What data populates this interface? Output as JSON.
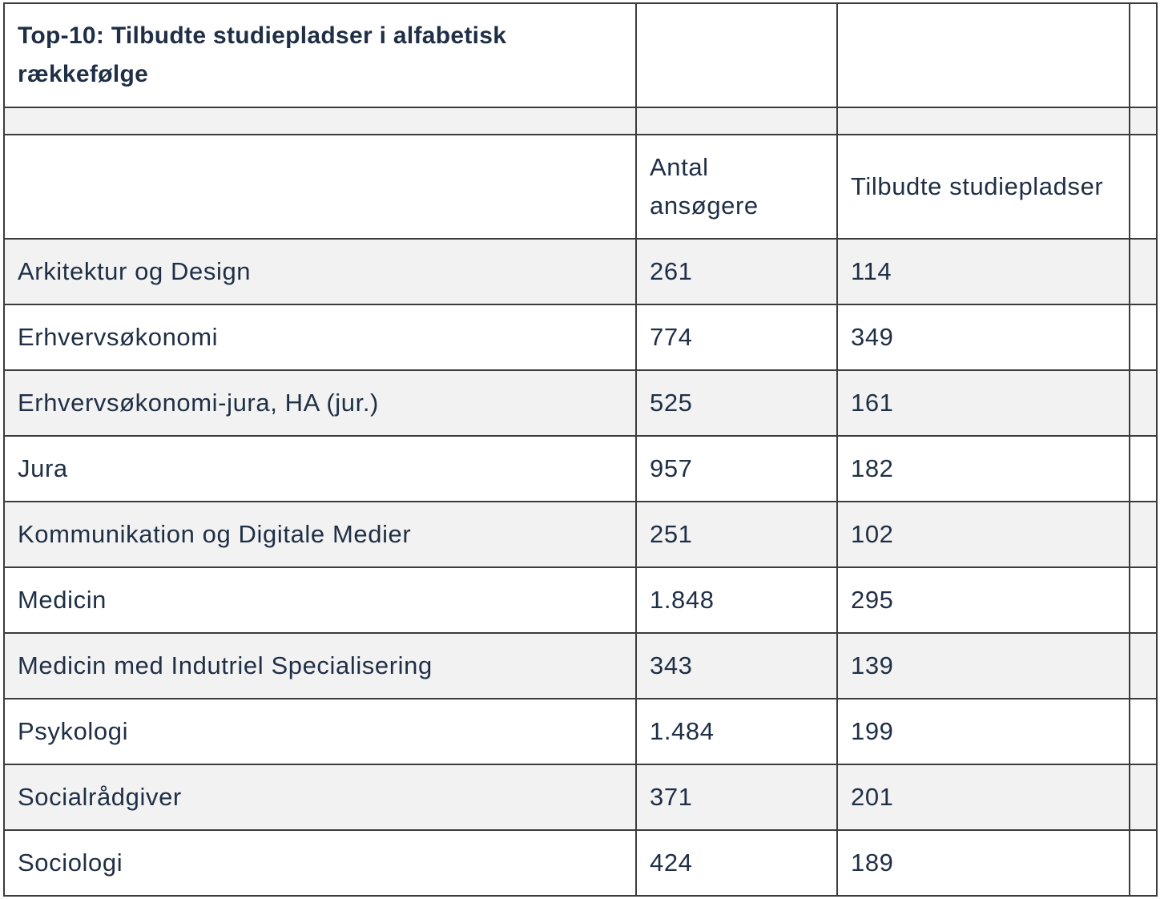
{
  "table": {
    "title": "Top-10: Tilbudte studiepladser i alfabetisk rækkefølge",
    "headers": {
      "education": "",
      "applicants": "Antal ansøgere",
      "offered": "Tilbudte studiepladser"
    },
    "rows": [
      {
        "name": "Arkitektur og Design",
        "applicants": "261",
        "offered": "114"
      },
      {
        "name": "Erhvervsøkonomi",
        "applicants": "774",
        "offered": "349"
      },
      {
        "name": "Erhvervsøkonomi-jura, HA (jur.)",
        "applicants": "525",
        "offered": "161"
      },
      {
        "name": "Jura",
        "applicants": "957",
        "offered": "182"
      },
      {
        "name": "Kommunikation og Digitale Medier",
        "applicants": "251",
        "offered": "102"
      },
      {
        "name": "Medicin",
        "applicants": "1.848",
        "offered": "295"
      },
      {
        "name": "Medicin med Indutriel Specialisering",
        "applicants": "343",
        "offered": "139"
      },
      {
        "name": "Psykologi",
        "applicants": "1.484",
        "offered": "199"
      },
      {
        "name": "Socialrådgiver",
        "applicants": "371",
        "offered": "201"
      },
      {
        "name": "Sociologi",
        "applicants": "424",
        "offered": "189"
      }
    ]
  }
}
